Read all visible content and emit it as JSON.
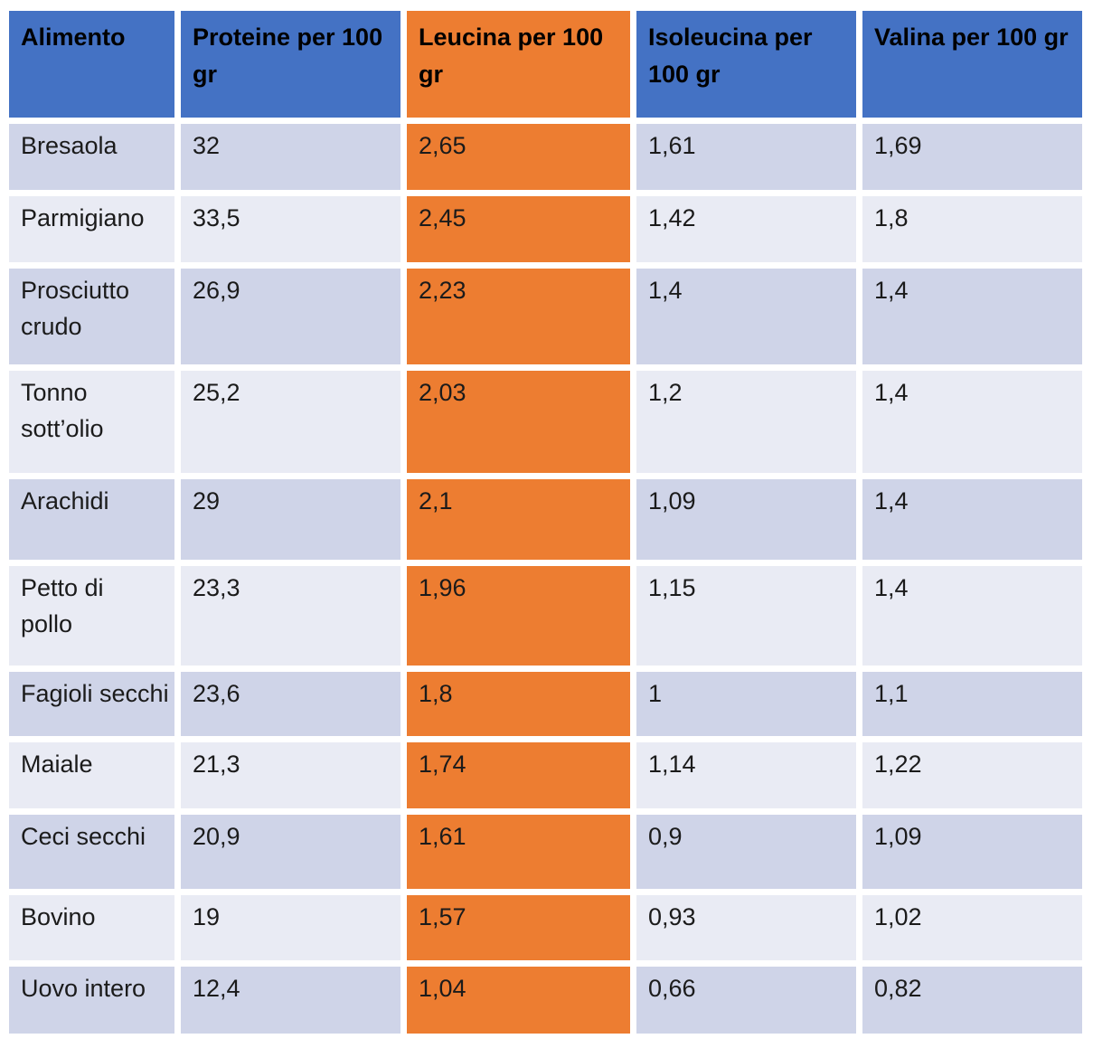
{
  "colors": {
    "header_blue": "#4472C4",
    "highlight_orange": "#ED7D31",
    "band_dark": "#CFD4E8",
    "band_light": "#E9EBF4",
    "header_text": "#000000",
    "body_text": "#1b1b1b",
    "background": "#ffffff"
  },
  "table": {
    "columns": [
      {
        "label": "Alimento"
      },
      {
        "label": "Proteine per 100\ngr"
      },
      {
        "label": "Leucina per 100\ngr"
      },
      {
        "label": "Isoleucina per\n100 gr"
      },
      {
        "label": "Valina per 100 gr"
      }
    ],
    "rows": [
      {
        "alimento": "Bresaola",
        "proteine": "32",
        "leucina": "2,65",
        "isoleucina": "1,61",
        "valina": "1,69"
      },
      {
        "alimento": "Parmigiano",
        "proteine": "33,5",
        "leucina": "2,45",
        "isoleucina": "1,42",
        "valina": "1,8"
      },
      {
        "alimento": "Prosciutto\ncrudo",
        "proteine": "26,9",
        "leucina": "2,23",
        "isoleucina": "1,4",
        "valina": "1,4"
      },
      {
        "alimento": "Tonno\nsott’olio",
        "proteine": "25,2",
        "leucina": "2,03",
        "isoleucina": "1,2",
        "valina": "1,4"
      },
      {
        "alimento": "Arachidi",
        "proteine": "29",
        "leucina": "2,1",
        "isoleucina": "1,09",
        "valina": "1,4"
      },
      {
        "alimento": "Petto di\npollo",
        "proteine": "23,3",
        "leucina": "1,96",
        "isoleucina": "1,15",
        "valina": "1,4"
      },
      {
        "alimento": "Fagioli secchi",
        "proteine": "23,6",
        "leucina": "1,8",
        "isoleucina": "1",
        "valina": "1,1"
      },
      {
        "alimento": "Maiale",
        "proteine": "21,3",
        "leucina": "1,74",
        "isoleucina": "1,14",
        "valina": "1,22"
      },
      {
        "alimento": "Ceci secchi",
        "proteine": "20,9",
        "leucina": "1,61",
        "isoleucina": "0,9",
        "valina": "1,09"
      },
      {
        "alimento": "Bovino",
        "proteine": "19",
        "leucina": "1,57",
        "isoleucina": "0,93",
        "valina": "1,02"
      },
      {
        "alimento": "Uovo intero",
        "proteine": "12,4",
        "leucina": "1,04",
        "isoleucina": "0,66",
        "valina": "0,82"
      }
    ]
  },
  "chart_data": {
    "type": "table",
    "title": "",
    "categories": [
      "Bresaola",
      "Parmigiano",
      "Prosciutto crudo",
      "Tonno sott’olio",
      "Arachidi",
      "Petto di pollo",
      "Fagioli secchi",
      "Maiale",
      "Ceci secchi",
      "Bovino",
      "Uovo intero"
    ],
    "series": [
      {
        "name": "Proteine per 100 gr",
        "values": [
          32,
          33.5,
          26.9,
          25.2,
          29,
          23.3,
          23.6,
          21.3,
          20.9,
          19,
          12.4
        ]
      },
      {
        "name": "Leucina per 100 gr",
        "values": [
          2.65,
          2.45,
          2.23,
          2.03,
          2.1,
          1.96,
          1.8,
          1.74,
          1.61,
          1.57,
          1.04
        ]
      },
      {
        "name": "Isoleucina per 100 gr",
        "values": [
          1.61,
          1.42,
          1.4,
          1.2,
          1.09,
          1.15,
          1,
          1.14,
          0.9,
          0.93,
          0.66
        ]
      },
      {
        "name": "Valina per 100 gr",
        "values": [
          1.69,
          1.8,
          1.4,
          1.4,
          1.4,
          1.4,
          1.1,
          1.22,
          1.09,
          1.02,
          0.82
        ]
      }
    ],
    "layout_hints": {
      "highlighted_column": "Leucina per 100 gr",
      "decimal_separator": ","
    }
  }
}
